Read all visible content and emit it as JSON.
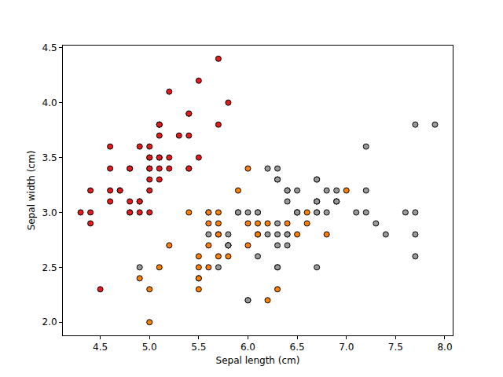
{
  "chart_data": {
    "type": "scatter",
    "x_label": "Sepal length (cm)",
    "y_label": "Sepal width (cm)",
    "xlim": [
      4.12,
      8.08
    ],
    "ylim": [
      1.88,
      4.52
    ],
    "xticks": [
      {
        "value": 4.5,
        "label": "4.5"
      },
      {
        "value": 5,
        "label": "5.0"
      },
      {
        "value": 5.5,
        "label": "5.5"
      },
      {
        "value": 6,
        "label": "6.0"
      },
      {
        "value": 6.5,
        "label": "6.5"
      },
      {
        "value": 7,
        "label": "7.0"
      },
      {
        "value": 7.5,
        "label": "7.5"
      },
      {
        "value": 8,
        "label": "8.0"
      }
    ],
    "yticks": [
      {
        "value": 2,
        "label": "2.0"
      },
      {
        "value": 2.5,
        "label": "2.5"
      },
      {
        "value": 3,
        "label": "3.0"
      },
      {
        "value": 3.5,
        "label": "3.5"
      },
      {
        "value": 4,
        "label": "4.0"
      },
      {
        "value": 4.5,
        "label": "4.5"
      }
    ],
    "grid": false,
    "marker": "circle",
    "series": [
      {
        "color": "#e41a1c",
        "x": [
          5.1,
          4.9,
          4.7,
          4.6,
          5.0,
          5.4,
          4.6,
          5.0,
          4.4,
          4.9,
          5.4,
          4.8,
          4.8,
          4.3,
          5.8,
          5.7,
          5.4,
          5.1,
          5.7,
          5.1,
          5.4,
          5.1,
          4.6,
          5.1,
          4.8,
          5.0,
          5.0,
          5.2,
          5.2,
          4.7,
          4.8,
          5.4,
          5.2,
          5.5,
          4.9,
          5.0,
          5.5,
          4.9,
          4.4,
          5.1,
          5.0,
          4.5,
          4.4,
          5.0,
          5.1,
          4.8,
          5.1,
          4.6,
          5.3,
          5.0
        ],
        "y": [
          3.5,
          3.0,
          3.2,
          3.1,
          3.6,
          3.9,
          3.4,
          3.4,
          2.9,
          3.1,
          3.7,
          3.4,
          3.0,
          3.0,
          4.0,
          4.4,
          3.9,
          3.5,
          3.8,
          3.8,
          3.4,
          3.7,
          3.6,
          3.3,
          3.4,
          3.0,
          3.4,
          3.5,
          3.4,
          3.2,
          3.1,
          3.4,
          4.1,
          4.2,
          3.1,
          3.2,
          3.5,
          3.6,
          3.0,
          3.4,
          3.5,
          2.3,
          3.2,
          3.5,
          3.8,
          3.0,
          3.8,
          3.2,
          3.7,
          3.3
        ]
      },
      {
        "color": "#ff7f00",
        "x": [
          7.0,
          6.4,
          6.9,
          5.5,
          6.5,
          5.7,
          6.3,
          4.9,
          6.6,
          5.2,
          5.0,
          5.9,
          6.0,
          6.1,
          5.6,
          6.7,
          5.6,
          5.8,
          6.2,
          5.6,
          5.9,
          6.1,
          6.3,
          6.1,
          6.4,
          6.6,
          6.8,
          6.7,
          6.0,
          5.7,
          5.5,
          5.5,
          5.8,
          6.0,
          5.4,
          6.0,
          6.7,
          6.3,
          5.6,
          5.5,
          5.5,
          6.1,
          5.8,
          5.0,
          5.6,
          5.7,
          5.7,
          6.2,
          5.1,
          5.7
        ],
        "y": [
          3.2,
          3.2,
          3.1,
          2.3,
          2.8,
          2.8,
          3.3,
          2.4,
          2.9,
          2.7,
          2.0,
          3.0,
          2.2,
          2.9,
          2.9,
          3.1,
          3.0,
          2.7,
          2.2,
          2.5,
          3.2,
          2.8,
          2.5,
          2.8,
          2.9,
          3.0,
          2.8,
          3.0,
          2.9,
          2.6,
          2.4,
          2.4,
          2.7,
          2.7,
          3.0,
          3.4,
          3.1,
          2.3,
          3.0,
          2.5,
          2.6,
          3.0,
          2.6,
          2.3,
          2.7,
          3.0,
          2.9,
          2.9,
          2.5,
          2.8
        ]
      },
      {
        "color": "#999999",
        "x": [
          6.3,
          5.8,
          7.1,
          6.3,
          6.5,
          7.6,
          4.9,
          7.3,
          6.7,
          7.2,
          6.5,
          6.4,
          6.8,
          5.7,
          5.8,
          6.4,
          6.5,
          7.7,
          7.7,
          6.0,
          6.9,
          5.6,
          7.7,
          6.3,
          6.7,
          7.2,
          6.2,
          6.1,
          6.4,
          7.2,
          7.4,
          7.9,
          6.4,
          6.3,
          6.1,
          7.7,
          6.3,
          6.4,
          6.0,
          6.9,
          6.7,
          6.9,
          5.8,
          6.8,
          6.7,
          6.7,
          6.3,
          6.5,
          6.2,
          5.9
        ],
        "y": [
          3.3,
          2.7,
          3.0,
          2.9,
          3.0,
          3.0,
          2.5,
          2.9,
          2.5,
          3.6,
          3.2,
          2.7,
          3.0,
          2.5,
          2.8,
          3.2,
          3.0,
          3.8,
          2.6,
          2.2,
          3.2,
          2.8,
          2.8,
          2.7,
          3.3,
          3.2,
          2.8,
          3.0,
          2.8,
          3.0,
          2.8,
          3.8,
          2.8,
          2.8,
          2.6,
          3.0,
          3.4,
          3.1,
          3.0,
          3.1,
          3.1,
          3.1,
          2.7,
          3.2,
          3.3,
          3.0,
          2.5,
          3.0,
          3.4,
          3.0
        ]
      }
    ]
  }
}
